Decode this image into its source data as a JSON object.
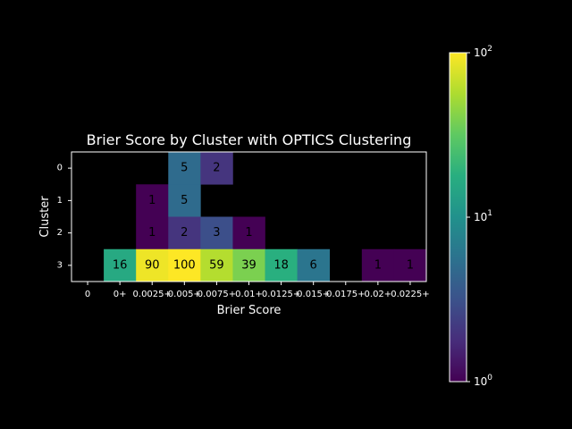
{
  "chart_data": {
    "type": "heatmap",
    "title": "Brier Score by Cluster with OPTICS Clustering",
    "xlabel": "Brier Score",
    "ylabel": "Cluster",
    "x_categories": [
      "0",
      "0+",
      "0.0025+",
      "0.005+",
      "0.0075+",
      "0.01+",
      "0.0125+",
      "0.015+",
      "0.0175+",
      "0.02+",
      "0.0225+"
    ],
    "y_categories": [
      "0",
      "1",
      "2",
      "3"
    ],
    "values": [
      [
        null,
        null,
        null,
        5,
        2,
        null,
        null,
        null,
        null,
        null,
        null
      ],
      [
        null,
        null,
        1,
        5,
        null,
        null,
        null,
        null,
        null,
        null,
        null
      ],
      [
        null,
        null,
        1,
        2,
        3,
        1,
        null,
        null,
        null,
        null,
        null
      ],
      [
        null,
        16,
        90,
        100,
        59,
        39,
        18,
        6,
        null,
        1,
        1
      ]
    ],
    "colorscale": "viridis",
    "color_scale_type": "log",
    "colorbar": {
      "range": [
        1,
        100
      ],
      "ticks": [
        {
          "value": 1,
          "base": "10",
          "exp": "0"
        },
        {
          "value": 10,
          "base": "10",
          "exp": "1"
        },
        {
          "value": 100,
          "base": "10",
          "exp": "2"
        }
      ]
    },
    "background": "#000000",
    "foreground": "#ffffff",
    "annotation_color": "#000000",
    "grid": false
  }
}
